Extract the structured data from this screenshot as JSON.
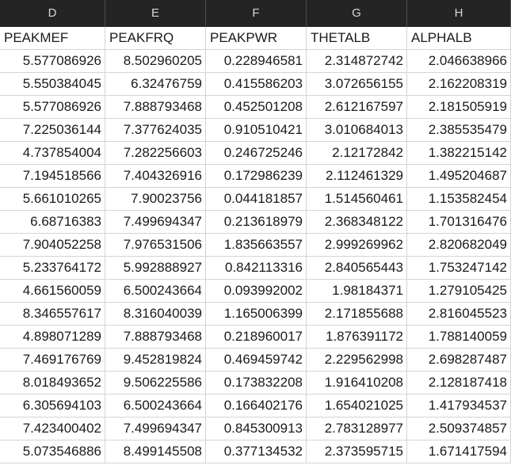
{
  "columns": [
    "D",
    "E",
    "F",
    "G",
    "H"
  ],
  "header_row": [
    "PEAKMEF",
    "PEAKFRQ",
    "PEAKPWR",
    "THETALB",
    "ALPHALB"
  ],
  "rows": [
    [
      "5.577086926",
      "8.502960205",
      "0.228946581",
      "2.314872742",
      "2.046638966"
    ],
    [
      "5.550384045",
      "6.32476759",
      "0.415586203",
      "3.072656155",
      "2.162208319"
    ],
    [
      "5.577086926",
      "7.888793468",
      "0.452501208",
      "2.612167597",
      "2.181505919"
    ],
    [
      "7.225036144",
      "7.377624035",
      "0.910510421",
      "3.010684013",
      "2.385535479"
    ],
    [
      "4.737854004",
      "7.282256603",
      "0.246725246",
      "2.12172842",
      "1.382215142"
    ],
    [
      "7.194518566",
      "7.404326916",
      "0.172986239",
      "2.112461329",
      "1.495204687"
    ],
    [
      "5.661010265",
      "7.90023756",
      "0.044181857",
      "1.514560461",
      "1.153582454"
    ],
    [
      "6.68716383",
      "7.499694347",
      "0.213618979",
      "2.368348122",
      "1.701316476"
    ],
    [
      "7.904052258",
      "7.976531506",
      "1.835663557",
      "2.999269962",
      "2.820682049"
    ],
    [
      "5.233764172",
      "5.992888927",
      "0.842113316",
      "2.840565443",
      "1.753247142"
    ],
    [
      "4.661560059",
      "6.500243664",
      "0.093992002",
      "1.98184371",
      "1.279105425"
    ],
    [
      "8.346557617",
      "8.316040039",
      "1.165006399",
      "2.171855688",
      "2.816045523"
    ],
    [
      "4.898071289",
      "7.888793468",
      "0.218960017",
      "1.876391172",
      "1.788140059"
    ],
    [
      "7.469176769",
      "9.452819824",
      "0.469459742",
      "2.229562998",
      "2.698287487"
    ],
    [
      "8.018493652",
      "9.506225586",
      "0.173832208",
      "1.916410208",
      "2.128187418"
    ],
    [
      "6.305694103",
      "6.500243664",
      "0.166402176",
      "1.654021025",
      "1.417934537"
    ],
    [
      "7.423400402",
      "7.499694347",
      "0.845300913",
      "2.783128977",
      "2.509374857"
    ],
    [
      "5.073546886",
      "8.499145508",
      "0.377134532",
      "2.373595715",
      "1.671417594"
    ]
  ]
}
